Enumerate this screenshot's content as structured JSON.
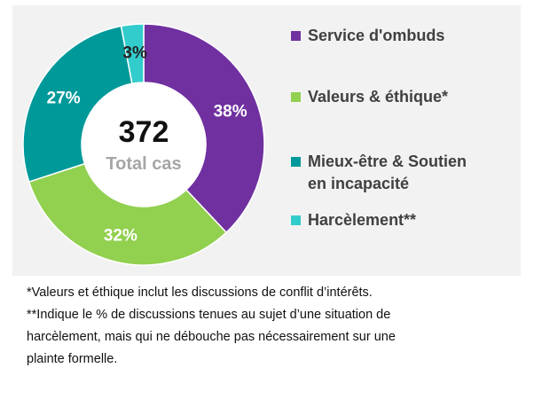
{
  "chart_data": {
    "type": "pie",
    "donut": true,
    "categories": [
      "Service d'ombuds",
      "Valeurs & éthique*",
      "Mieux-être & Soutien en incapacité",
      "Harcèlement**"
    ],
    "values": [
      38,
      32,
      27,
      3
    ],
    "value_labels": [
      "38%",
      "32%",
      "27%",
      "3%"
    ],
    "colors": [
      "#7030a0",
      "#92d050",
      "#00999a",
      "#33cccc"
    ],
    "center_value": "372",
    "center_label": "Total cas",
    "legend_position": "right"
  },
  "legend": {
    "items": [
      {
        "lines": [
          "Service d'ombuds"
        ],
        "color": "#7030a0"
      },
      {
        "lines": [
          "Valeurs & éthique*"
        ],
        "color": "#92d050"
      },
      {
        "lines": [
          "Mieux-être & Soutien",
          "en incapacité"
        ],
        "color": "#00999a"
      },
      {
        "lines": [
          "Harcèlement**"
        ],
        "color": "#33cccc"
      }
    ]
  },
  "notes": {
    "lines": [
      "*Valeurs et éthique inclut les discussions de conflit d’intérêts.",
      "**Indique le % de discussions tenues au sujet d’une situation de",
      "harcèlement, mais qui ne débouche pas nécessairement sur une",
      "plainte formelle."
    ]
  }
}
